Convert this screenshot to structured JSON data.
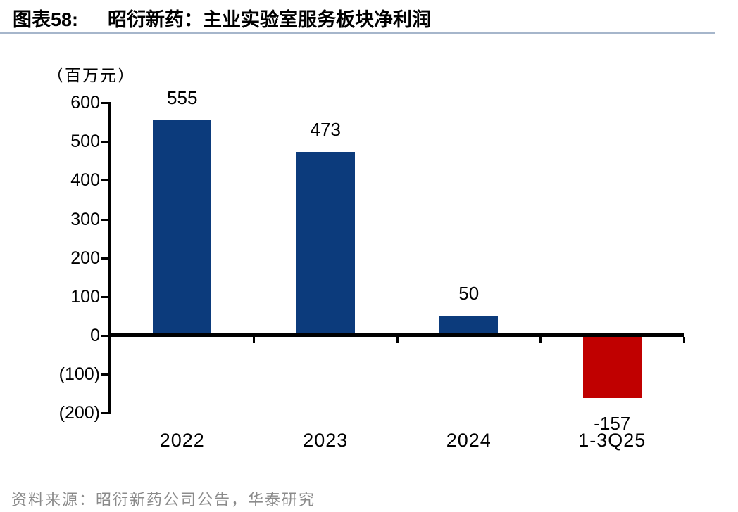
{
  "header": {
    "figure_label": "图表58:",
    "title": "昭衍新药：主业实验室服务板块净利润",
    "rule_color": "#A6B6CB"
  },
  "chart_data": {
    "type": "bar",
    "title": "昭衍新药：主业实验室服务板块净利润",
    "unit_label": "（百万元）",
    "categories": [
      "2022",
      "2023",
      "2024",
      "1-3Q25"
    ],
    "values": [
      555,
      473,
      50,
      -157
    ],
    "value_labels": [
      "555",
      "473",
      "50",
      "-157"
    ],
    "bar_colors": [
      "#0C3B7C",
      "#0C3B7C",
      "#0C3B7C",
      "#C00000"
    ],
    "positive_color": "#0C3B7C",
    "negative_color": "#C00000",
    "axis_color": "#000000",
    "ylim": [
      -200,
      600
    ],
    "yticks": [
      {
        "value": 600,
        "label": "600"
      },
      {
        "value": 500,
        "label": "500"
      },
      {
        "value": 400,
        "label": "400"
      },
      {
        "value": 300,
        "label": "300"
      },
      {
        "value": 200,
        "label": "200"
      },
      {
        "value": 100,
        "label": "100"
      },
      {
        "value": 0,
        "label": "0"
      },
      {
        "value": -100,
        "label": "(100)"
      },
      {
        "value": -200,
        "label": "(200)"
      }
    ],
    "grid": false,
    "legend": false
  },
  "footer": {
    "source": "资料来源：昭衍新药公司公告，华泰研究"
  }
}
